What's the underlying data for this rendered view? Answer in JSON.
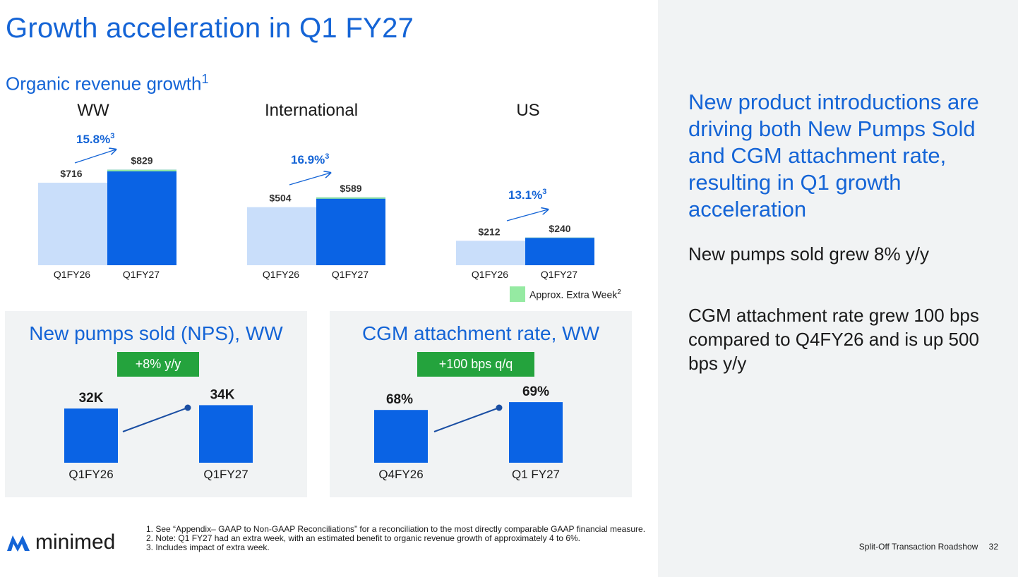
{
  "title": "Growth acceleration in Q1 FY27",
  "section": {
    "label": "Organic revenue growth",
    "superscript": "1"
  },
  "chart_data": [
    {
      "type": "bar",
      "title": "WW",
      "categories": [
        "Q1FY26",
        "Q1FY27"
      ],
      "value_labels": [
        "$716",
        "$829"
      ],
      "values": [
        716,
        829
      ],
      "extra_week_portion": [
        0,
        14
      ],
      "growth_label": "15.8%",
      "growth_superscript": "3"
    },
    {
      "type": "bar",
      "title": "International",
      "categories": [
        "Q1FY26",
        "Q1FY27"
      ],
      "value_labels": [
        "$504",
        "$589"
      ],
      "values": [
        504,
        589
      ],
      "extra_week_portion": [
        0,
        12
      ],
      "growth_label": "16.9%",
      "growth_superscript": "3"
    },
    {
      "type": "bar",
      "title": "US",
      "categories": [
        "Q1FY26",
        "Q1FY27"
      ],
      "value_labels": [
        "$212",
        "$240"
      ],
      "values": [
        212,
        240
      ],
      "extra_week_portion": [
        0,
        3
      ],
      "growth_label": "13.1%",
      "growth_superscript": "3"
    },
    {
      "type": "bar",
      "title": "New pumps sold (NPS), WW",
      "categories": [
        "Q1FY26",
        "Q1FY27"
      ],
      "value_labels": [
        "32K",
        "34K"
      ],
      "values": [
        32,
        34
      ],
      "change_label": "+8% y/y"
    },
    {
      "type": "bar",
      "title": "CGM attachment rate, WW",
      "categories": [
        "Q4FY26",
        "Q1 FY27"
      ],
      "value_labels": [
        "68%",
        "69%"
      ],
      "values": [
        68,
        69
      ],
      "change_label": "+100 bps q/q"
    }
  ],
  "legend": {
    "label": "Approx. Extra Week",
    "superscript": "2",
    "color": "#95eaa2"
  },
  "colors": {
    "accent": "#1464d6",
    "bar_prior": "#c9defa",
    "bar_current": "#0a63e4",
    "extra_week": "#95eaa2",
    "badge": "#24a33d"
  },
  "headline": "New product introductions are driving both New Pumps Sold and CGM attachment rate, resulting in Q1 growth acceleration",
  "bullets": [
    "New pumps sold grew 8% y/y",
    "CGM attachment rate grew 100 bps compared to Q4FY26 and is up 500 bps y/y"
  ],
  "footnotes": [
    "1. See “Appendix– GAAP to Non-GAAP Reconciliations” for a reconciliation to the most directly comparable GAAP financial measure.",
    "2. Note: Q1 FY27 had an extra week, with an estimated benefit to organic revenue growth of approximately 4 to 6%.",
    "3. Includes impact of extra week."
  ],
  "logo": {
    "text": "minimed",
    "icon": "minimed-logo-icon"
  },
  "footer": {
    "label": "Split-Off Transaction Roadshow",
    "page_number": "32"
  }
}
